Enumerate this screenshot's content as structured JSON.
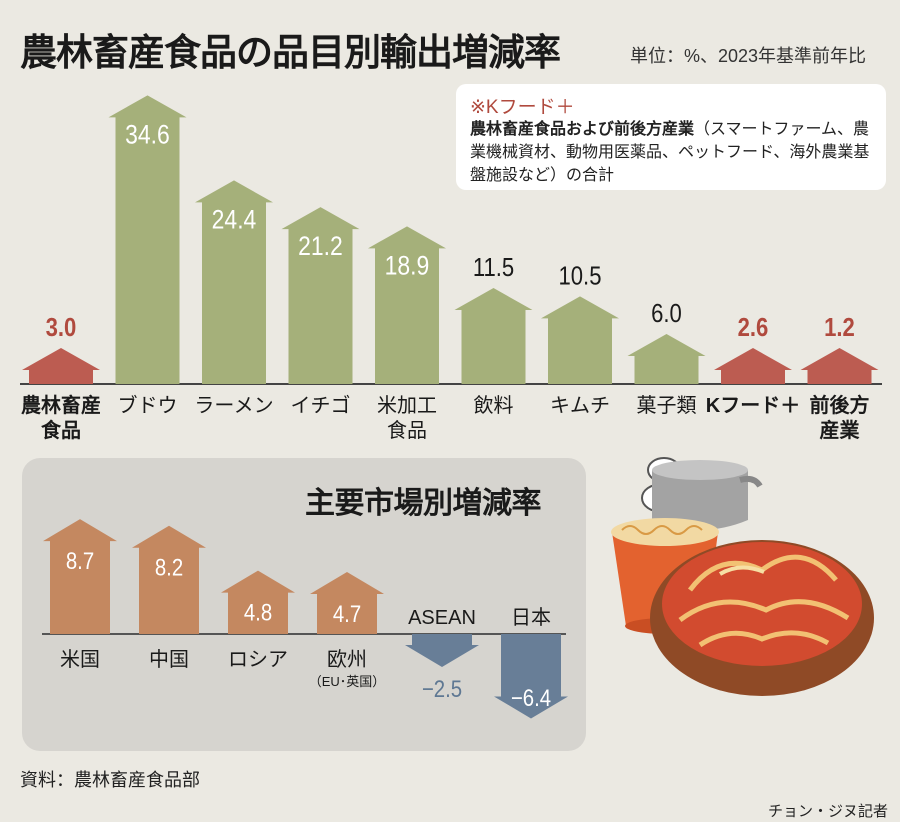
{
  "title": "農林畜産食品の品目別輸出増減率",
  "unit": "単位：%、2023年基準前年比",
  "note": {
    "title": "※Kフード＋",
    "bold": "農林畜産食品および前後方産業",
    "rest": "（スマートファーム、農業機械資材、動物用医薬品、ペットフード、海外農業基盤施設など）の合計"
  },
  "source": "資料：農林畜産食品部",
  "credit": "チョン・ジヌ記者",
  "colors": {
    "green": "#a5b07a",
    "red": "#bc5c51",
    "brown": "#c48860",
    "blue": "#687e97",
    "red_text": "#b04a3e",
    "blue_text": "#5f7893"
  },
  "chart_data": [
    {
      "type": "bar",
      "title": "農林畜産食品の品目別輸出増減率",
      "unit": "%",
      "categories": [
        "農林畜産\n食品",
        "ブドウ",
        "ラーメン",
        "イチゴ",
        "米加工\n食品",
        "飲料",
        "キムチ",
        "菓子類",
        "Kフード＋",
        "前後方\n産業"
      ],
      "values": [
        3.0,
        34.6,
        24.4,
        21.2,
        18.9,
        11.5,
        10.5,
        6.0,
        2.6,
        1.2
      ],
      "labels": [
        "3.0",
        "34.6",
        "24.4",
        "21.2",
        "18.9",
        "11.5",
        "10.5",
        "6.0",
        "2.6",
        "1.2"
      ],
      "highlight": [
        true,
        false,
        false,
        false,
        false,
        false,
        false,
        false,
        true,
        true
      ],
      "ylim": [
        0,
        35
      ]
    },
    {
      "type": "bar",
      "title": "主要市場別増減率",
      "unit": "%",
      "categories": [
        "米国",
        "中国",
        "ロシア",
        "欧州",
        "ASEAN",
        "日本"
      ],
      "sublabels": [
        "",
        "",
        "",
        "（EU･英国）",
        "",
        ""
      ],
      "values": [
        8.7,
        8.2,
        4.8,
        4.7,
        -2.5,
        -6.4
      ],
      "labels": [
        "8.7",
        "8.2",
        "4.8",
        "4.7",
        "−2.5",
        "−6.4"
      ],
      "ylim": [
        -6.4,
        8.7
      ]
    }
  ]
}
